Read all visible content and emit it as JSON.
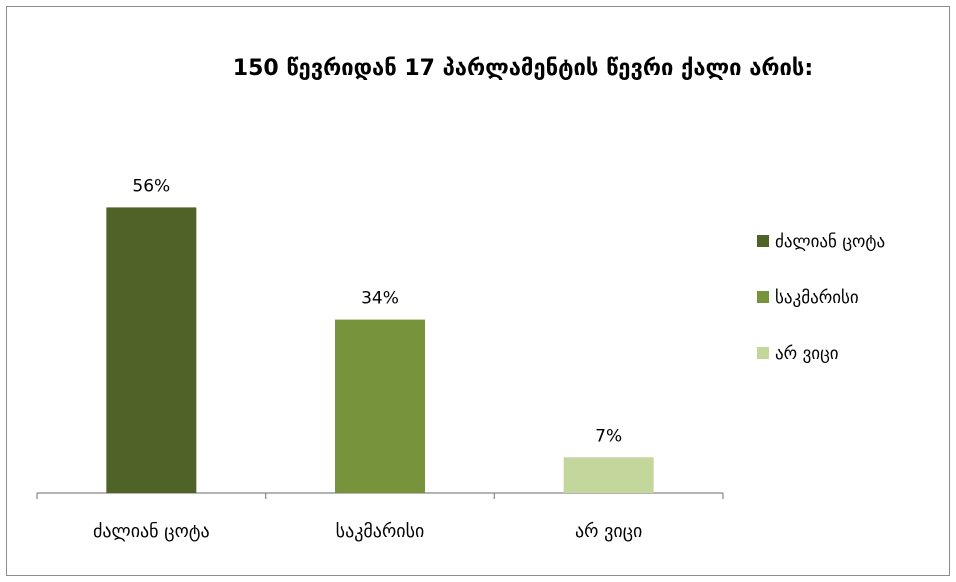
{
  "chart_data": {
    "type": "bar",
    "title": "150 წევრიდან 17 პარლამენტის წევრი ქალი არის:",
    "xlabel": "",
    "ylabel": "",
    "categories": [
      "ძალიან ცოტა",
      "საკმარისი",
      "არ ვიცი"
    ],
    "values": [
      56,
      34,
      7
    ],
    "data_labels": [
      "56%",
      "34%",
      "7%"
    ],
    "unit": "%",
    "ylim": [
      0,
      60
    ],
    "grid": false,
    "legend": {
      "position": "right",
      "entries": [
        "ძალიან ცოტა",
        "საკმარისი",
        "არ ვიცი"
      ]
    },
    "colors": [
      "#4f6228",
      "#77933c",
      "#c3d69b"
    ]
  }
}
